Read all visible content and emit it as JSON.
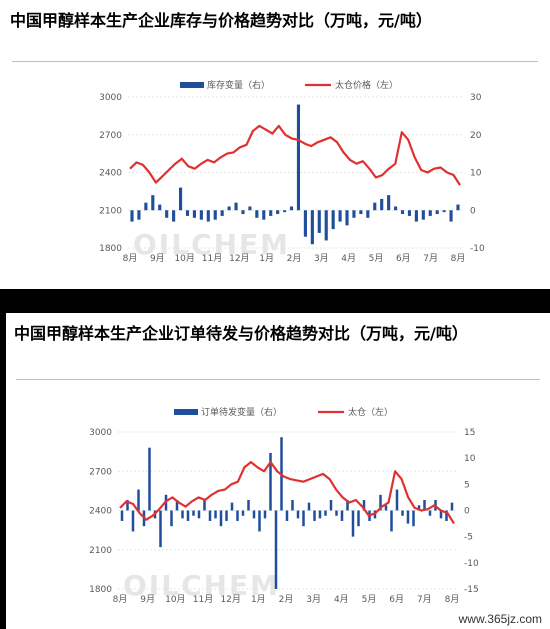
{
  "panels": [
    {
      "title": "中国甲醇样本生产企业库存与价格趋势对比（万吨，元/吨）",
      "watermark": "OILCHEM",
      "chart_data": {
        "type": "bar+line",
        "x_ticks": [
          "8月",
          "9月",
          "10月",
          "11月",
          "12月",
          "1月",
          "2月",
          "3月",
          "4月",
          "5月",
          "6月",
          "7月",
          "8月"
        ],
        "y_left_range": [
          1800,
          3000
        ],
        "y_left_ticks": [
          "1800",
          "2100",
          "2400",
          "2700",
          "3000"
        ],
        "y_right_range": [
          -10,
          30
        ],
        "y_right_ticks": [
          "-10",
          "0",
          "10",
          "20",
          "30"
        ],
        "grid": true,
        "legend_position": "top",
        "series": [
          {
            "name": "库存变量（右）",
            "type": "bar",
            "axis": "right",
            "color": "#1f4e9c",
            "values": [
              -3,
              -2.5,
              2,
              4,
              1.5,
              -2,
              -3,
              6,
              -1.5,
              -2,
              -2.5,
              -3,
              -2.5,
              -1.5,
              1,
              2,
              -1,
              1,
              -2,
              -2.5,
              -1.5,
              -1,
              -0.5,
              1,
              28,
              -7,
              -9,
              -6,
              -8,
              -5,
              -3,
              -4,
              -2,
              -1,
              -2,
              2,
              3,
              4,
              1,
              -1,
              -1.5,
              -3,
              -2.5,
              -1.5,
              -1,
              -0.5,
              -3,
              1.5
            ]
          },
          {
            "name": "太仓价格（左）",
            "type": "line",
            "axis": "left",
            "color": "#e03030",
            "values": [
              2430,
              2480,
              2460,
              2400,
              2320,
              2370,
              2420,
              2470,
              2510,
              2450,
              2430,
              2470,
              2500,
              2480,
              2520,
              2550,
              2560,
              2600,
              2620,
              2730,
              2770,
              2740,
              2710,
              2770,
              2700,
              2670,
              2660,
              2630,
              2610,
              2640,
              2660,
              2680,
              2640,
              2560,
              2500,
              2470,
              2490,
              2430,
              2360,
              2380,
              2430,
              2470,
              2720,
              2660,
              2520,
              2420,
              2400,
              2430,
              2440,
              2400,
              2380,
              2300
            ]
          }
        ]
      }
    },
    {
      "title": "中国甲醇样本生产企业订单待发与价格趋势对比（万吨，元/吨）",
      "watermark": "OILCHEM",
      "chart_data": {
        "type": "bar+line",
        "x_ticks": [
          "8月",
          "9月",
          "10月",
          "11月",
          "12月",
          "1月",
          "2月",
          "3月",
          "4月",
          "5月",
          "6月",
          "7月",
          "8月"
        ],
        "y_left_range": [
          1800,
          3000
        ],
        "y_left_ticks": [
          "1800",
          "2100",
          "2400",
          "2700",
          "3000"
        ],
        "y_right_range": [
          -15,
          15
        ],
        "y_right_ticks": [
          "-15",
          "-10",
          "-5",
          "0",
          "5",
          "10",
          "15"
        ],
        "grid": true,
        "legend_position": "top",
        "series": [
          {
            "name": "订单待发变量（右）",
            "type": "bar",
            "axis": "right",
            "color": "#1f4e9c",
            "values": [
              -2,
              2,
              -4,
              4,
              -3,
              12,
              -1.5,
              -7,
              3,
              -3,
              2,
              -1.5,
              -2,
              -1,
              -1.5,
              2,
              -2,
              -1.5,
              -3,
              -2,
              1.5,
              -2,
              -1,
              2,
              -1.5,
              -4,
              -1.5,
              11,
              -15,
              14,
              -2,
              2,
              -1.5,
              -3,
              1.5,
              -2,
              -1.5,
              -1,
              2,
              -1,
              -2,
              2,
              -5,
              -3,
              2,
              -2,
              -1.5,
              3,
              1,
              -4,
              4,
              -1,
              -2.5,
              -3,
              1,
              2,
              -1,
              2,
              -1.5,
              -2,
              1.5
            ]
          },
          {
            "name": "太仓（左）",
            "type": "line",
            "axis": "left",
            "color": "#e03030",
            "values": [
              2420,
              2470,
              2450,
              2380,
              2330,
              2360,
              2410,
              2470,
              2500,
              2460,
              2430,
              2470,
              2500,
              2480,
              2520,
              2550,
              2560,
              2600,
              2620,
              2730,
              2770,
              2730,
              2700,
              2770,
              2700,
              2660,
              2640,
              2630,
              2620,
              2640,
              2660,
              2680,
              2640,
              2560,
              2500,
              2460,
              2480,
              2430,
              2360,
              2380,
              2430,
              2460,
              2700,
              2640,
              2500,
              2420,
              2400,
              2410,
              2440,
              2400,
              2380,
              2300
            ]
          }
        ]
      }
    }
  ],
  "footer": "www.365jz.com"
}
